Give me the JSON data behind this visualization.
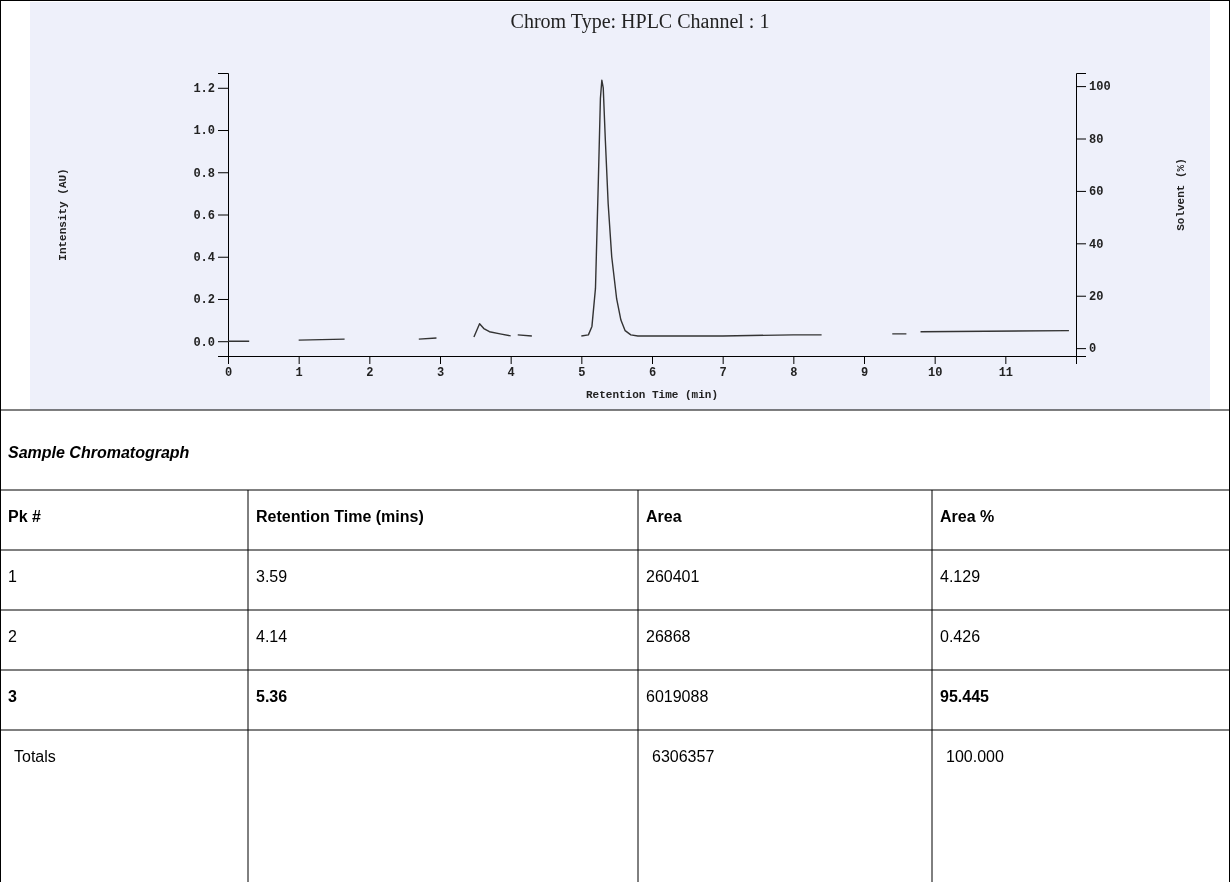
{
  "chart_data": [
    {
      "type": "line",
      "title": "Chrom Type: HPLC Channel : 1",
      "xlabel": "Retention Time (min)",
      "ylabel": "Intensity (AU)",
      "y2label": "Solvent (%)",
      "xlim": [
        0,
        12
      ],
      "xticks": [
        0,
        1,
        2,
        3,
        4,
        5,
        6,
        7,
        8,
        9,
        10,
        11
      ],
      "ylim": [
        -0.07,
        1.27
      ],
      "yticks": [
        {
          "value": 0,
          "label": "0.0"
        },
        {
          "value": 0.2,
          "label": "0.2"
        },
        {
          "value": 0.4,
          "label": "0.4"
        },
        {
          "value": 0.6,
          "label": "0.6"
        },
        {
          "value": 0.8,
          "label": "0.8"
        },
        {
          "value": 1,
          "label": "1.0"
        },
        {
          "value": 1.2,
          "label": "1.2"
        }
      ],
      "y2lim": [
        -3,
        105
      ],
      "y2ticks": [
        0,
        20,
        40,
        60,
        80,
        100
      ],
      "grid": false,
      "marker": "none",
      "line_style": "solid",
      "series": [
        {
          "color": "#333333",
          "x": [
            0,
            0.3,
            0.6,
            1.0,
            1.65,
            2.2,
            2.7,
            2.95,
            3.2,
            3.48,
            3.56,
            3.62,
            3.7,
            3.85,
            4.0,
            4.05,
            4.1,
            4.3,
            4.6,
            5.0,
            5.1,
            5.15,
            5.2,
            5.24,
            5.27,
            5.29,
            5.31,
            5.34,
            5.38,
            5.43,
            5.5,
            5.56,
            5.62,
            5.7,
            5.8,
            6.0,
            7.0,
            8.0,
            8.4,
            9.0,
            9.4,
            9.6,
            9.7,
            9.8,
            11.9
          ],
          "values": [
            0,
            0,
            null,
            0.005,
            0.01,
            null,
            0.01,
            0.015,
            null,
            0.02,
            0.083,
            0.06,
            0.045,
            0.035,
            0.025,
            null,
            0.03,
            0.025,
            null,
            0.025,
            0.03,
            0.07,
            0.25,
            0.75,
            1.15,
            1.236,
            1.2,
            0.95,
            0.65,
            0.4,
            0.2,
            0.1,
            0.05,
            0.03,
            0.025,
            0.025,
            0.025,
            0.03,
            0.03,
            null,
            0.035,
            0.035,
            null,
            0.045,
            0.05
          ]
        }
      ]
    },
    {
      "type": "other",
      "title": "Sample Chromatograph",
      "annotations": [
        "Pk #",
        "Retention Time (mins)",
        "Area",
        "Area %",
        "1",
        "3.59",
        "260401",
        "4.129",
        "2",
        "4.14",
        "26868",
        "0.426",
        "3",
        "5.36",
        "6019088",
        "95.445",
        "Totals",
        null,
        "6306357",
        "100.000"
      ]
    }
  ]
}
